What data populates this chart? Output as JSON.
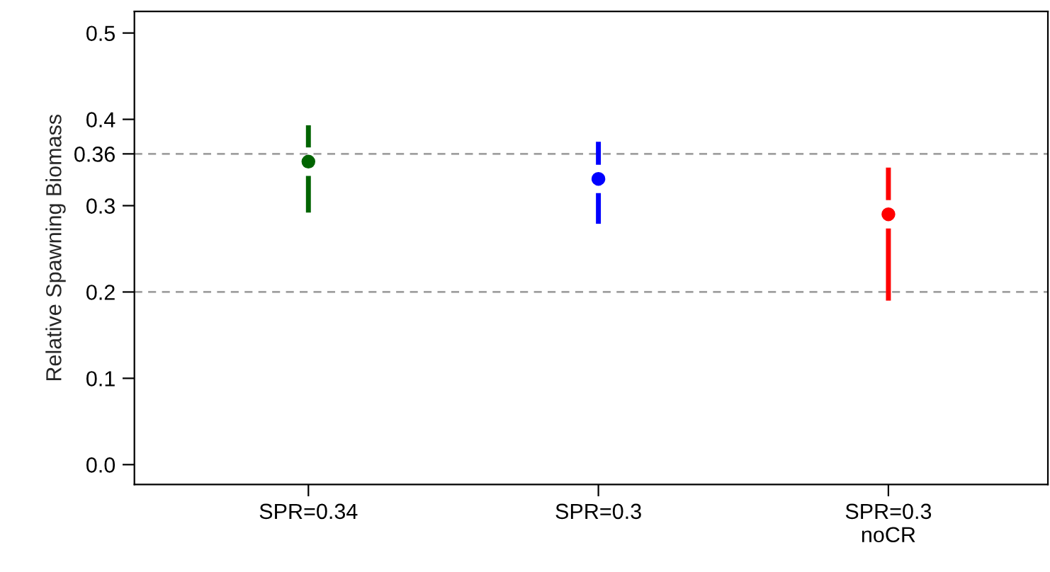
{
  "chart_data": {
    "type": "scatter",
    "ylabel": "Relative Spawning Biomass",
    "categories": [
      "SPR=0.34",
      "SPR=0.3",
      "SPR=0.3\nnoCR"
    ],
    "values": [
      0.351,
      0.331,
      0.29
    ],
    "errors": [
      [
        0.292,
        0.393
      ],
      [
        0.279,
        0.374
      ],
      [
        0.19,
        0.344
      ]
    ],
    "colors": [
      "#006400",
      "#0000ff",
      "#ff0000"
    ],
    "ylim": [
      -0.023,
      0.525
    ],
    "yticks": [
      {
        "value": 0,
        "label": "0.0"
      },
      0.1,
      0.2,
      0.3,
      0.36,
      0.4,
      0.5
    ],
    "ref_lines": [
      {
        "axis": "y",
        "value": 0.36,
        "color": "#a0a0a0",
        "line_style": "dashed"
      },
      {
        "axis": "y",
        "value": 0.2,
        "color": "#a0a0a0",
        "line_style": "dashed"
      }
    ],
    "marker": "circle",
    "grid": false,
    "legend": false
  }
}
